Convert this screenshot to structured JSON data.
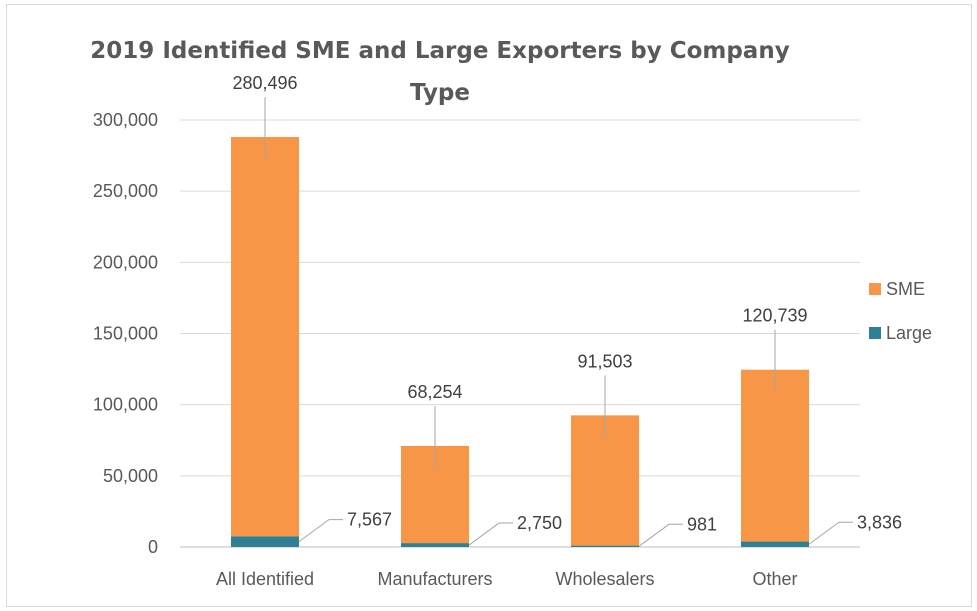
{
  "chart_data": {
    "type": "bar",
    "stacked": true,
    "title": "2019 Identified SME and Large Exporters by Company Type",
    "categories": [
      "All Identified",
      "Manufacturers",
      "Wholesalers",
      "Other"
    ],
    "series": [
      {
        "name": "Large",
        "values": [
          7567,
          2750,
          981,
          3836
        ],
        "color": "#2e8094"
      },
      {
        "name": "SME",
        "values": [
          280496,
          68254,
          91503,
          120739
        ],
        "color": "#f79646"
      }
    ],
    "data_labels": {
      "Large": [
        "7,567",
        "2,750",
        "981",
        "3,836"
      ],
      "SME": [
        "280,496",
        "68,254",
        "91,503",
        "120,739"
      ]
    },
    "y_ticks": [
      0,
      50000,
      100000,
      150000,
      200000,
      250000,
      300000
    ],
    "y_tick_labels": [
      "0",
      "50,000",
      "100,000",
      "150,000",
      "200,000",
      "250,000",
      "300,000"
    ],
    "ylim": [
      0,
      300000
    ],
    "xlabel": "",
    "ylabel": "",
    "grid": true,
    "legend": {
      "position": "right",
      "entries": [
        "SME",
        "Large"
      ]
    }
  }
}
